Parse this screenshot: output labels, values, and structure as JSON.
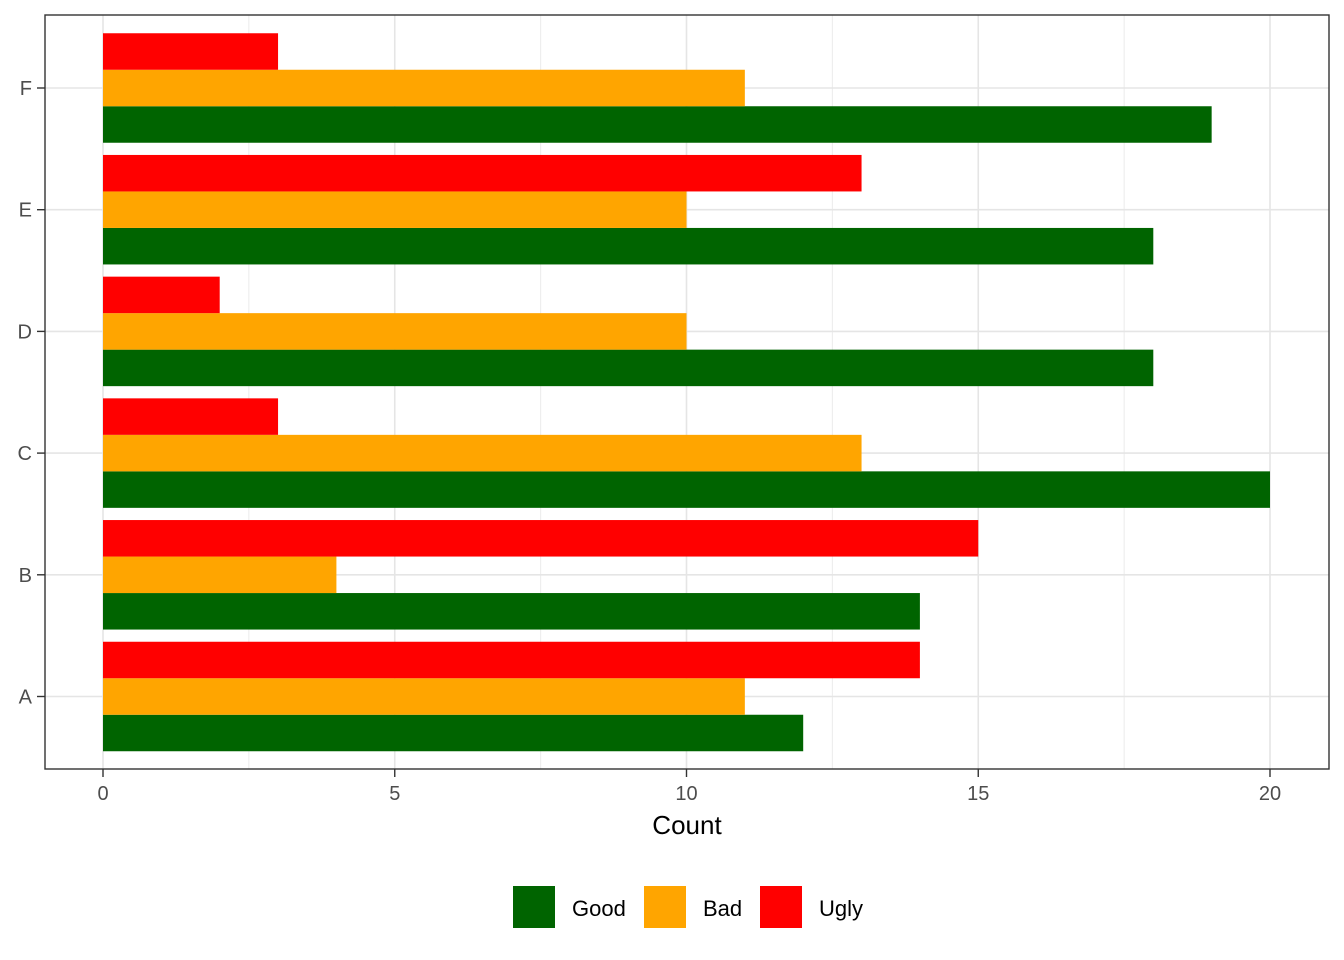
{
  "chart_data": {
    "type": "bar",
    "orientation": "horizontal",
    "categories": [
      "A",
      "B",
      "C",
      "D",
      "E",
      "F"
    ],
    "series": [
      {
        "name": "Good",
        "color": "#006400",
        "values": [
          12,
          14,
          20,
          18,
          18,
          19
        ]
      },
      {
        "name": "Bad",
        "color": "#FFA500",
        "values": [
          11,
          4,
          13,
          10,
          10,
          11
        ]
      },
      {
        "name": "Ugly",
        "color": "#FF0000",
        "values": [
          14,
          15,
          3,
          2,
          13,
          3
        ]
      }
    ],
    "x_ticks": [
      "0",
      "5",
      "10",
      "15",
      "20"
    ],
    "xlim": [
      -1,
      21
    ],
    "xlabel": "Count",
    "ylabel": "",
    "title": "",
    "grid": true,
    "legend_position": "bottom"
  }
}
